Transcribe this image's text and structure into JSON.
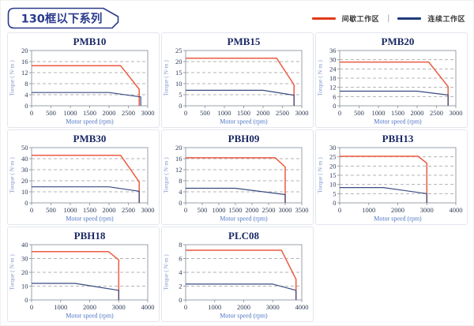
{
  "header": {
    "title": "130框以下系列"
  },
  "legend": {
    "intermittent": "间歇工作区",
    "separator": "|",
    "continuous": "连续工作区"
  },
  "colors": {
    "intermittent": "#ec5a41",
    "intermittent_legend": "#e23a18",
    "continuous": "#394b80",
    "continuous_legend": "#1f3d7c",
    "chart_title": "#1b2a66",
    "box_navy": "#2a3a8c",
    "axis": "#9aa0aa",
    "grid": "#b3b3b3",
    "tick_text": "#2e3b55",
    "xlabel_text": "#4e74c4",
    "ylabel_text": "#8096cc"
  },
  "chart_data": [
    {
      "type": "line",
      "title": "PMB10",
      "xlabel": "Motor speed (rpm)",
      "ylabel": "Torque ( N·m )",
      "xlim": [
        0,
        3000
      ],
      "xticks": [
        0,
        500,
        1000,
        1500,
        2000,
        2500,
        3000
      ],
      "ylim": [
        0,
        20
      ],
      "yticks": [
        0,
        4,
        8,
        12,
        16,
        20
      ],
      "grid": "horizontal-dashed",
      "legend_position": "none",
      "series": [
        {
          "name": "间歇工作区",
          "color_key": "intermittent",
          "points": [
            [
              0,
              14.5
            ],
            [
              2300,
              14.5
            ],
            [
              2780,
              6
            ],
            [
              2780,
              0
            ]
          ]
        },
        {
          "name": "连续工作区",
          "color_key": "continuous",
          "points": [
            [
              0,
              4.8
            ],
            [
              2000,
              4.8
            ],
            [
              2820,
              3.2
            ],
            [
              2820,
              0
            ]
          ]
        }
      ]
    },
    {
      "type": "line",
      "title": "PMB15",
      "xlabel": "Motor speed (rpm)",
      "ylabel": "Torque ( N·m )",
      "xlim": [
        0,
        3000
      ],
      "xticks": [
        0,
        500,
        1000,
        1500,
        2000,
        2500,
        3000
      ],
      "ylim": [
        0,
        25
      ],
      "yticks": [
        0,
        5,
        10,
        15,
        20,
        25
      ],
      "grid": "horizontal-dashed",
      "legend_position": "none",
      "series": [
        {
          "name": "间歇工作区",
          "color_key": "intermittent",
          "points": [
            [
              0,
              21.5
            ],
            [
              2350,
              21.5
            ],
            [
              2800,
              9.5
            ],
            [
              2800,
              0
            ]
          ]
        },
        {
          "name": "连续工作区",
          "color_key": "continuous",
          "points": [
            [
              0,
              7
            ],
            [
              2000,
              7
            ],
            [
              2800,
              4.8
            ],
            [
              2800,
              0
            ]
          ]
        }
      ]
    },
    {
      "type": "line",
      "title": "PMB20",
      "xlabel": "Motor speed (rpm)",
      "ylabel": "Torque ( N·m )",
      "xlim": [
        0,
        3000
      ],
      "xticks": [
        0,
        500,
        1000,
        1500,
        2000,
        2500,
        3000
      ],
      "ylim": [
        0,
        36
      ],
      "yticks": [
        0,
        6,
        12,
        18,
        24,
        30,
        36
      ],
      "grid": "horizontal-dashed",
      "legend_position": "none",
      "series": [
        {
          "name": "间歇工作区",
          "color_key": "intermittent",
          "points": [
            [
              0,
              28.5
            ],
            [
              2300,
              28.5
            ],
            [
              2800,
              12.5
            ],
            [
              2800,
              0
            ]
          ]
        },
        {
          "name": "连续工作区",
          "color_key": "continuous",
          "points": [
            [
              0,
              9.5
            ],
            [
              2000,
              9.5
            ],
            [
              2800,
              7
            ],
            [
              2800,
              0
            ]
          ]
        }
      ]
    },
    {
      "type": "line",
      "title": "PMB30",
      "xlabel": "Motor speed (rpm)",
      "ylabel": "Torque ( N·m )",
      "xlim": [
        0,
        3000
      ],
      "xticks": [
        0,
        500,
        1000,
        1500,
        2000,
        2500,
        3000
      ],
      "ylim": [
        0,
        50
      ],
      "yticks": [
        0,
        10,
        20,
        30,
        40,
        50
      ],
      "grid": "horizontal-dashed",
      "legend_position": "none",
      "series": [
        {
          "name": "间歇工作区",
          "color_key": "intermittent",
          "points": [
            [
              0,
              43
            ],
            [
              2300,
              43
            ],
            [
              2780,
              19
            ],
            [
              2780,
              0
            ]
          ]
        },
        {
          "name": "连续工作区",
          "color_key": "continuous",
          "points": [
            [
              0,
              14.5
            ],
            [
              2000,
              14.5
            ],
            [
              2780,
              10.5
            ],
            [
              2780,
              0
            ]
          ]
        }
      ]
    },
    {
      "type": "line",
      "title": "PBH09",
      "xlabel": "Motor speed (rpm)",
      "ylabel": "Torque ( N·m )",
      "xlim": [
        0,
        3500
      ],
      "xticks": [
        0,
        500,
        1000,
        1500,
        2000,
        2500,
        3000,
        3500
      ],
      "ylim": [
        0,
        20
      ],
      "yticks": [
        0,
        4,
        8,
        12,
        16,
        20
      ],
      "grid": "horizontal-dashed",
      "legend_position": "none",
      "series": [
        {
          "name": "间歇工作区",
          "color_key": "intermittent",
          "points": [
            [
              0,
              16.3
            ],
            [
              2700,
              16.3
            ],
            [
              3000,
              13
            ],
            [
              3000,
              0
            ]
          ]
        },
        {
          "name": "连续工作区",
          "color_key": "continuous",
          "points": [
            [
              0,
              5.3
            ],
            [
              1500,
              5.3
            ],
            [
              3000,
              3
            ],
            [
              3000,
              0
            ]
          ]
        }
      ]
    },
    {
      "type": "line",
      "title": "PBH13",
      "xlabel": "Motor speed (rpm)",
      "ylabel": "Torque ( N·m )",
      "xlim": [
        0,
        4000
      ],
      "xticks": [
        0,
        1000,
        2000,
        3000,
        4000
      ],
      "ylim": [
        0,
        30
      ],
      "yticks": [
        0,
        5,
        10,
        15,
        20,
        25,
        30
      ],
      "grid": "horizontal-dashed",
      "legend_position": "none",
      "series": [
        {
          "name": "间歇工作区",
          "color_key": "intermittent",
          "points": [
            [
              0,
              25.3
            ],
            [
              2700,
              25.3
            ],
            [
              3000,
              21.5
            ],
            [
              3000,
              0
            ]
          ]
        },
        {
          "name": "连续工作区",
          "color_key": "continuous",
          "points": [
            [
              0,
              8.3
            ],
            [
              1500,
              8.3
            ],
            [
              3000,
              5
            ],
            [
              3000,
              0
            ]
          ]
        }
      ]
    },
    {
      "type": "line",
      "title": "PBH18",
      "xlabel": "Motor speed (rpm)",
      "ylabel": "Torque ( N·m )",
      "xlim": [
        0,
        4000
      ],
      "xticks": [
        0,
        1000,
        2000,
        3000,
        4000
      ],
      "ylim": [
        0,
        40
      ],
      "yticks": [
        0,
        10,
        20,
        30,
        40
      ],
      "grid": "horizontal-dashed",
      "legend_position": "none",
      "series": [
        {
          "name": "间歇工作区",
          "color_key": "intermittent",
          "points": [
            [
              0,
              35
            ],
            [
              2650,
              35
            ],
            [
              3000,
              29
            ],
            [
              3000,
              0
            ]
          ]
        },
        {
          "name": "连续工作区",
          "color_key": "continuous",
          "points": [
            [
              0,
              12
            ],
            [
              1500,
              12
            ],
            [
              3000,
              7
            ],
            [
              3000,
              0
            ]
          ]
        }
      ]
    },
    {
      "type": "line",
      "title": "PLC08",
      "xlabel": "Motor speed (rpm)",
      "ylabel": "Torque ( N·m )",
      "xlim": [
        0,
        4000
      ],
      "xticks": [
        0,
        1000,
        2000,
        3000,
        4000
      ],
      "ylim": [
        0,
        8
      ],
      "yticks": [
        0,
        2,
        4,
        6,
        8
      ],
      "grid": "horizontal-dashed",
      "legend_position": "none",
      "series": [
        {
          "name": "间歇工作区",
          "color_key": "intermittent",
          "points": [
            [
              0,
              7.2
            ],
            [
              3300,
              7.2
            ],
            [
              3800,
              3
            ],
            [
              3800,
              0
            ]
          ]
        },
        {
          "name": "连续工作区",
          "color_key": "continuous",
          "points": [
            [
              0,
              2.3
            ],
            [
              3000,
              2.3
            ],
            [
              3800,
              1.4
            ],
            [
              3800,
              0
            ]
          ]
        }
      ]
    }
  ]
}
